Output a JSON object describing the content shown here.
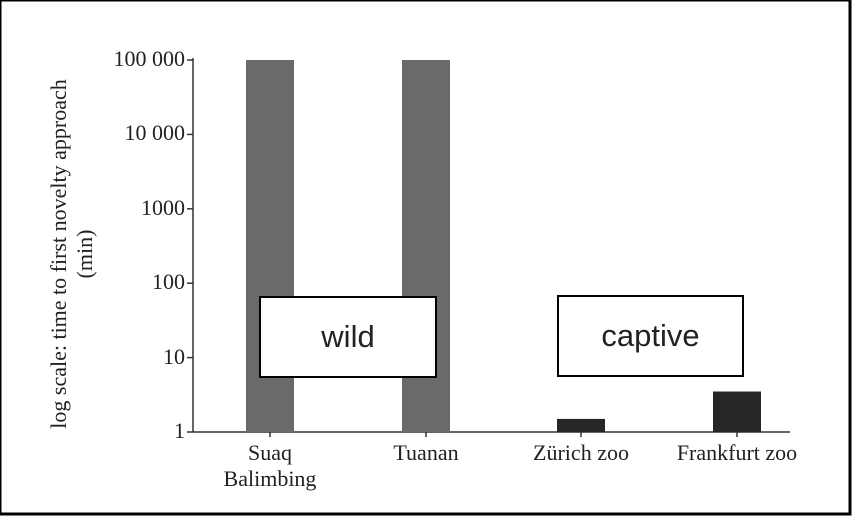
{
  "chart_data": {
    "type": "bar",
    "ylabel": "log scale: time to first novelty approach (min)",
    "categories": [
      "Suaq\nBalimbing",
      "Tuanan",
      "Zürich zoo",
      "Frankfurt zoo"
    ],
    "values": [
      100000,
      100000,
      1.5,
      3.5
    ],
    "colors": [
      "#6a6a6a",
      "#6a6a6a",
      "#262626",
      "#262626"
    ],
    "log_scale": true,
    "ylim": [
      1,
      100000
    ],
    "yticks": [
      1,
      10,
      100,
      1000,
      {
        "value": 10000,
        "label": "10 000"
      },
      {
        "value": 100000,
        "label": "100 000"
      }
    ],
    "annotations": [
      "wild",
      "captive"
    ]
  }
}
